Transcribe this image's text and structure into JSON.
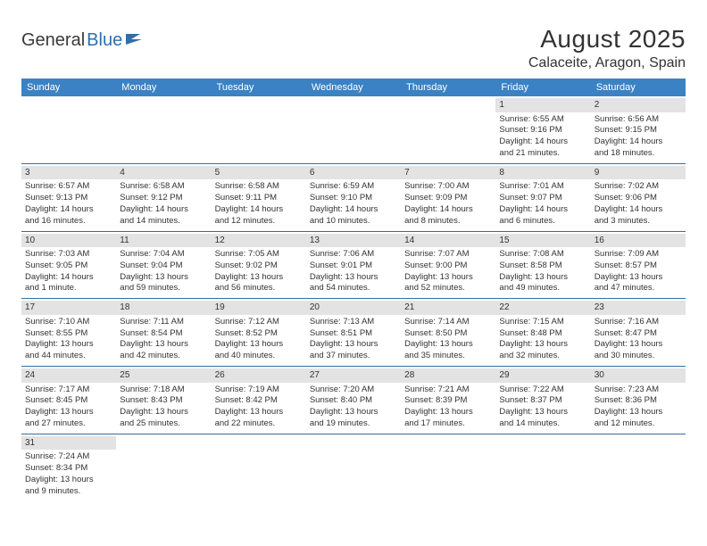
{
  "logo": {
    "textA": "General",
    "textB": "Blue"
  },
  "title": "August 2025",
  "location": "Calaceite, Aragon, Spain",
  "colors": {
    "header_bg": "#3b82c4",
    "header_text": "#ffffff",
    "dayhead_bg": "#e3e3e3",
    "row_border": "#2f6fab",
    "text": "#333333",
    "logo_blue": "#2f6fab"
  },
  "weekdays": [
    "Sunday",
    "Monday",
    "Tuesday",
    "Wednesday",
    "Thursday",
    "Friday",
    "Saturday"
  ],
  "weeks": [
    [
      null,
      null,
      null,
      null,
      null,
      {
        "n": "1",
        "sr": "Sunrise: 6:55 AM",
        "ss": "Sunset: 9:16 PM",
        "d1": "Daylight: 14 hours",
        "d2": "and 21 minutes."
      },
      {
        "n": "2",
        "sr": "Sunrise: 6:56 AM",
        "ss": "Sunset: 9:15 PM",
        "d1": "Daylight: 14 hours",
        "d2": "and 18 minutes."
      }
    ],
    [
      {
        "n": "3",
        "sr": "Sunrise: 6:57 AM",
        "ss": "Sunset: 9:13 PM",
        "d1": "Daylight: 14 hours",
        "d2": "and 16 minutes."
      },
      {
        "n": "4",
        "sr": "Sunrise: 6:58 AM",
        "ss": "Sunset: 9:12 PM",
        "d1": "Daylight: 14 hours",
        "d2": "and 14 minutes."
      },
      {
        "n": "5",
        "sr": "Sunrise: 6:58 AM",
        "ss": "Sunset: 9:11 PM",
        "d1": "Daylight: 14 hours",
        "d2": "and 12 minutes."
      },
      {
        "n": "6",
        "sr": "Sunrise: 6:59 AM",
        "ss": "Sunset: 9:10 PM",
        "d1": "Daylight: 14 hours",
        "d2": "and 10 minutes."
      },
      {
        "n": "7",
        "sr": "Sunrise: 7:00 AM",
        "ss": "Sunset: 9:09 PM",
        "d1": "Daylight: 14 hours",
        "d2": "and 8 minutes."
      },
      {
        "n": "8",
        "sr": "Sunrise: 7:01 AM",
        "ss": "Sunset: 9:07 PM",
        "d1": "Daylight: 14 hours",
        "d2": "and 6 minutes."
      },
      {
        "n": "9",
        "sr": "Sunrise: 7:02 AM",
        "ss": "Sunset: 9:06 PM",
        "d1": "Daylight: 14 hours",
        "d2": "and 3 minutes."
      }
    ],
    [
      {
        "n": "10",
        "sr": "Sunrise: 7:03 AM",
        "ss": "Sunset: 9:05 PM",
        "d1": "Daylight: 14 hours",
        "d2": "and 1 minute."
      },
      {
        "n": "11",
        "sr": "Sunrise: 7:04 AM",
        "ss": "Sunset: 9:04 PM",
        "d1": "Daylight: 13 hours",
        "d2": "and 59 minutes."
      },
      {
        "n": "12",
        "sr": "Sunrise: 7:05 AM",
        "ss": "Sunset: 9:02 PM",
        "d1": "Daylight: 13 hours",
        "d2": "and 56 minutes."
      },
      {
        "n": "13",
        "sr": "Sunrise: 7:06 AM",
        "ss": "Sunset: 9:01 PM",
        "d1": "Daylight: 13 hours",
        "d2": "and 54 minutes."
      },
      {
        "n": "14",
        "sr": "Sunrise: 7:07 AM",
        "ss": "Sunset: 9:00 PM",
        "d1": "Daylight: 13 hours",
        "d2": "and 52 minutes."
      },
      {
        "n": "15",
        "sr": "Sunrise: 7:08 AM",
        "ss": "Sunset: 8:58 PM",
        "d1": "Daylight: 13 hours",
        "d2": "and 49 minutes."
      },
      {
        "n": "16",
        "sr": "Sunrise: 7:09 AM",
        "ss": "Sunset: 8:57 PM",
        "d1": "Daylight: 13 hours",
        "d2": "and 47 minutes."
      }
    ],
    [
      {
        "n": "17",
        "sr": "Sunrise: 7:10 AM",
        "ss": "Sunset: 8:55 PM",
        "d1": "Daylight: 13 hours",
        "d2": "and 44 minutes."
      },
      {
        "n": "18",
        "sr": "Sunrise: 7:11 AM",
        "ss": "Sunset: 8:54 PM",
        "d1": "Daylight: 13 hours",
        "d2": "and 42 minutes."
      },
      {
        "n": "19",
        "sr": "Sunrise: 7:12 AM",
        "ss": "Sunset: 8:52 PM",
        "d1": "Daylight: 13 hours",
        "d2": "and 40 minutes."
      },
      {
        "n": "20",
        "sr": "Sunrise: 7:13 AM",
        "ss": "Sunset: 8:51 PM",
        "d1": "Daylight: 13 hours",
        "d2": "and 37 minutes."
      },
      {
        "n": "21",
        "sr": "Sunrise: 7:14 AM",
        "ss": "Sunset: 8:50 PM",
        "d1": "Daylight: 13 hours",
        "d2": "and 35 minutes."
      },
      {
        "n": "22",
        "sr": "Sunrise: 7:15 AM",
        "ss": "Sunset: 8:48 PM",
        "d1": "Daylight: 13 hours",
        "d2": "and 32 minutes."
      },
      {
        "n": "23",
        "sr": "Sunrise: 7:16 AM",
        "ss": "Sunset: 8:47 PM",
        "d1": "Daylight: 13 hours",
        "d2": "and 30 minutes."
      }
    ],
    [
      {
        "n": "24",
        "sr": "Sunrise: 7:17 AM",
        "ss": "Sunset: 8:45 PM",
        "d1": "Daylight: 13 hours",
        "d2": "and 27 minutes."
      },
      {
        "n": "25",
        "sr": "Sunrise: 7:18 AM",
        "ss": "Sunset: 8:43 PM",
        "d1": "Daylight: 13 hours",
        "d2": "and 25 minutes."
      },
      {
        "n": "26",
        "sr": "Sunrise: 7:19 AM",
        "ss": "Sunset: 8:42 PM",
        "d1": "Daylight: 13 hours",
        "d2": "and 22 minutes."
      },
      {
        "n": "27",
        "sr": "Sunrise: 7:20 AM",
        "ss": "Sunset: 8:40 PM",
        "d1": "Daylight: 13 hours",
        "d2": "and 19 minutes."
      },
      {
        "n": "28",
        "sr": "Sunrise: 7:21 AM",
        "ss": "Sunset: 8:39 PM",
        "d1": "Daylight: 13 hours",
        "d2": "and 17 minutes."
      },
      {
        "n": "29",
        "sr": "Sunrise: 7:22 AM",
        "ss": "Sunset: 8:37 PM",
        "d1": "Daylight: 13 hours",
        "d2": "and 14 minutes."
      },
      {
        "n": "30",
        "sr": "Sunrise: 7:23 AM",
        "ss": "Sunset: 8:36 PM",
        "d1": "Daylight: 13 hours",
        "d2": "and 12 minutes."
      }
    ],
    [
      {
        "n": "31",
        "sr": "Sunrise: 7:24 AM",
        "ss": "Sunset: 8:34 PM",
        "d1": "Daylight: 13 hours",
        "d2": "and 9 minutes."
      },
      null,
      null,
      null,
      null,
      null,
      null
    ]
  ]
}
